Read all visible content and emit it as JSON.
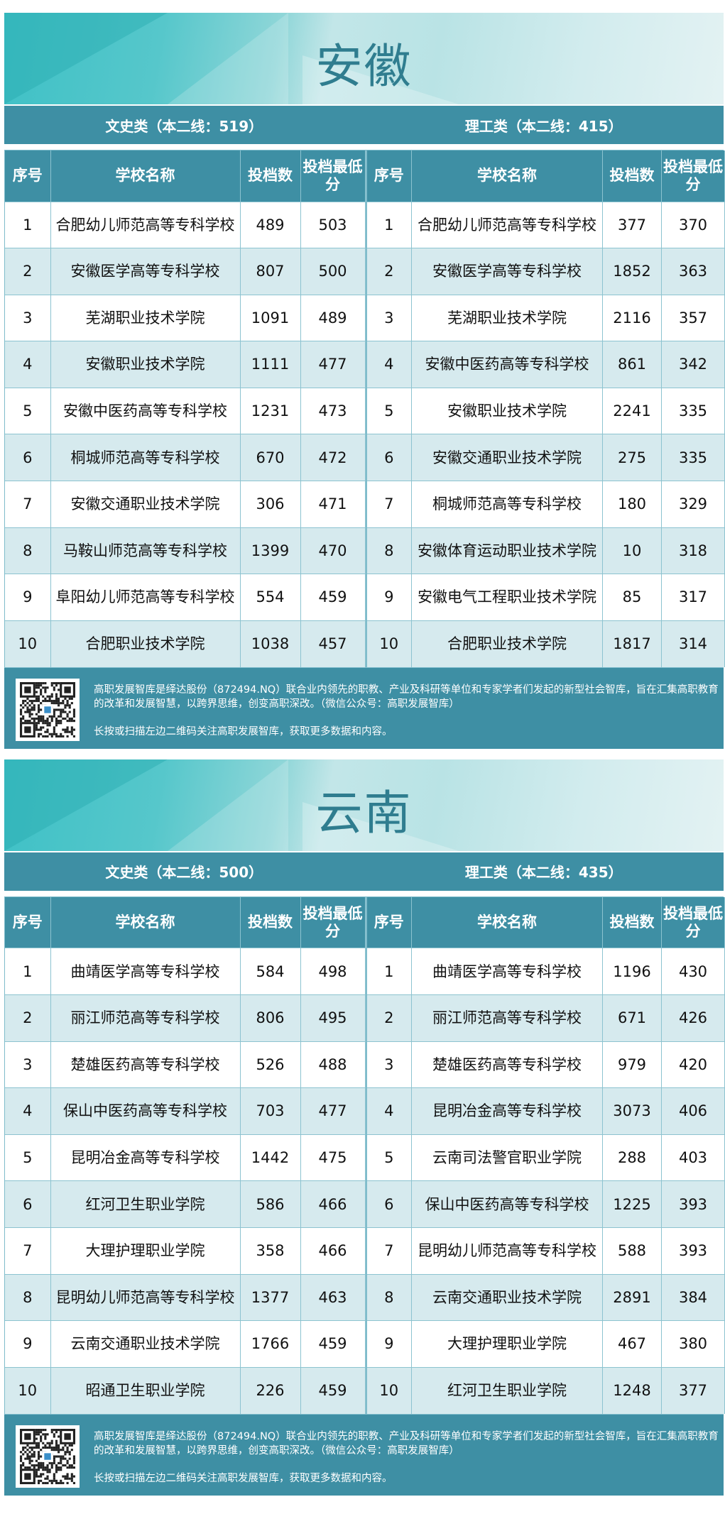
{
  "sections": [
    {
      "province": "安徽",
      "left_category": "文史类（本二线：519）",
      "right_category": "理工类（本二线：415）",
      "headers": [
        "序号",
        "学校名称",
        "投档数",
        "投档最低分"
      ],
      "left_rows": [
        [
          "1",
          "合肥幼儿师范高等专科学校",
          "489",
          "503"
        ],
        [
          "2",
          "安徽医学高等专科学校",
          "807",
          "500"
        ],
        [
          "3",
          "芜湖职业技术学院",
          "1091",
          "489"
        ],
        [
          "4",
          "安徽职业技术学院",
          "1111",
          "477"
        ],
        [
          "5",
          "安徽中医药高等专科学校",
          "1231",
          "473"
        ],
        [
          "6",
          "桐城师范高等专科学校",
          "670",
          "472"
        ],
        [
          "7",
          "安徽交通职业技术学院",
          "306",
          "471"
        ],
        [
          "8",
          "马鞍山师范高等专科学校",
          "1399",
          "470"
        ],
        [
          "9",
          "阜阳幼儿师范高等专科学校",
          "554",
          "459"
        ],
        [
          "10",
          "合肥职业技术学院",
          "1038",
          "457"
        ]
      ],
      "right_rows": [
        [
          "1",
          "合肥幼儿师范高等专科学校",
          "377",
          "370"
        ],
        [
          "2",
          "安徽医学高等专科学校",
          "1852",
          "363"
        ],
        [
          "3",
          "芜湖职业技术学院",
          "2116",
          "357"
        ],
        [
          "4",
          "安徽中医药高等专科学校",
          "861",
          "342"
        ],
        [
          "5",
          "安徽职业技术学院",
          "2241",
          "335"
        ],
        [
          "6",
          "安徽交通职业技术学院",
          "275",
          "335"
        ],
        [
          "7",
          "桐城师范高等专科学校",
          "180",
          "329"
        ],
        [
          "8",
          "安徽体育运动职业技术学院",
          "10",
          "318"
        ],
        [
          "9",
          "安徽电气工程职业技术学院",
          "85",
          "317"
        ],
        [
          "10",
          "合肥职业技术学院",
          "1817",
          "314"
        ]
      ]
    },
    {
      "province": "云南",
      "left_category": "文史类（本二线：500）",
      "right_category": "理工类（本二线：435）",
      "headers": [
        "序号",
        "学校名称",
        "投档数",
        "投档最低分"
      ],
      "left_rows": [
        [
          "1",
          "曲靖医学高等专科学校",
          "584",
          "498"
        ],
        [
          "2",
          "丽江师范高等专科学校",
          "806",
          "495"
        ],
        [
          "3",
          "楚雄医药高等专科学校",
          "526",
          "488"
        ],
        [
          "4",
          "保山中医药高等专科学校",
          "703",
          "477"
        ],
        [
          "5",
          "昆明冶金高等专科学校",
          "1442",
          "475"
        ],
        [
          "6",
          "红河卫生职业学院",
          "586",
          "466"
        ],
        [
          "7",
          "大理护理职业学院",
          "358",
          "466"
        ],
        [
          "8",
          "昆明幼儿师范高等专科学校",
          "1377",
          "463"
        ],
        [
          "9",
          "云南交通职业技术学院",
          "1766",
          "459"
        ],
        [
          "10",
          "昭通卫生职业学院",
          "226",
          "459"
        ]
      ],
      "right_rows": [
        [
          "1",
          "曲靖医学高等专科学校",
          "1196",
          "430"
        ],
        [
          "2",
          "丽江师范高等专科学校",
          "671",
          "426"
        ],
        [
          "3",
          "楚雄医药高等专科学校",
          "979",
          "420"
        ],
        [
          "4",
          "昆明冶金高等专科学校",
          "3073",
          "406"
        ],
        [
          "5",
          "云南司法警官职业学院",
          "288",
          "403"
        ],
        [
          "6",
          "保山中医药高等专科学校",
          "1225",
          "393"
        ],
        [
          "7",
          "昆明幼儿师范高等专科学校",
          "588",
          "393"
        ],
        [
          "8",
          "云南交通职业技术学院",
          "2891",
          "384"
        ],
        [
          "9",
          "大理护理职业学院",
          "467",
          "380"
        ],
        [
          "10",
          "红河卫生职业学院",
          "1248",
          "377"
        ]
      ]
    }
  ],
  "footer": {
    "line1": "高职发展智库是绎达股份（872494.NQ）联合业内领先的职教、产业及科研等单位和专家学者们发起的新型社会智库，旨在汇集高职教育的改革和发展智慧，以跨界思维，创变高职深改。（微信公众号：高职发展智库）",
    "line2": "长按或扫描左边二维码关注高职发展智库，获取更多数据和内容。"
  },
  "colors": {
    "header": "#3e8fa4",
    "row_alt": "#d6eaee",
    "title": "#2f7d8f"
  }
}
